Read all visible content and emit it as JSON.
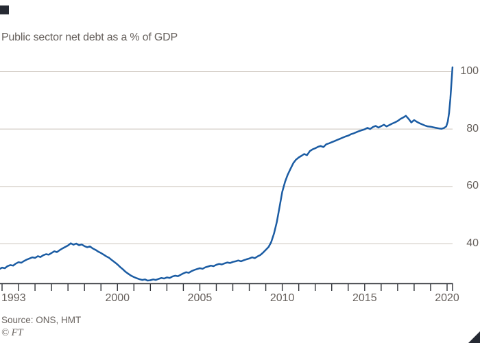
{
  "title": "Public sector net debt as a % of GDP",
  "source_line": "Source: ONS, HMT",
  "credit": "© FT",
  "colors": {
    "background": "#ffffff",
    "line": "#1b5ca3",
    "gridline": "#cbc3ba",
    "axis": "#303338",
    "text": "#66605c",
    "brand_mark": "#262a33"
  },
  "chart_data": {
    "type": "line",
    "title": "Public sector net debt as a % of GDP",
    "xlabel": "",
    "ylabel": "",
    "grid": "horizontal",
    "legend": "none",
    "y_axis": {
      "side": "right",
      "ticks": [
        40,
        60,
        80,
        100
      ],
      "ylim_bottom_at_axis": 26.1,
      "ylim_top": 103
    },
    "x_axis": {
      "tick_interval_years": 1,
      "first_tick_year": 1993,
      "end_of_axis_year": 2020.33,
      "labeled_years": [
        "1993",
        "2000",
        "2005",
        "2010",
        "2015",
        "2020"
      ]
    },
    "series": [
      {
        "name": "Public sector net debt as a % of GDP",
        "points": [
          [
            1992.88,
            31.2
          ],
          [
            1993.0,
            31.6
          ],
          [
            1993.17,
            31.4
          ],
          [
            1993.33,
            32.1
          ],
          [
            1993.5,
            32.5
          ],
          [
            1993.67,
            32.3
          ],
          [
            1993.83,
            33.0
          ],
          [
            1994.0,
            33.5
          ],
          [
            1994.17,
            33.3
          ],
          [
            1994.33,
            33.9
          ],
          [
            1994.5,
            34.4
          ],
          [
            1994.67,
            34.8
          ],
          [
            1994.83,
            35.2
          ],
          [
            1995.0,
            35.0
          ],
          [
            1995.17,
            35.6
          ],
          [
            1995.33,
            35.3
          ],
          [
            1995.5,
            35.9
          ],
          [
            1995.67,
            36.3
          ],
          [
            1995.83,
            36.1
          ],
          [
            1996.0,
            36.7
          ],
          [
            1996.17,
            37.3
          ],
          [
            1996.33,
            37.0
          ],
          [
            1996.5,
            37.7
          ],
          [
            1996.67,
            38.3
          ],
          [
            1996.83,
            38.8
          ],
          [
            1997.0,
            39.3
          ],
          [
            1997.17,
            40.1
          ],
          [
            1997.33,
            39.6
          ],
          [
            1997.5,
            40.0
          ],
          [
            1997.67,
            39.4
          ],
          [
            1997.83,
            39.7
          ],
          [
            1998.0,
            39.1
          ],
          [
            1998.17,
            38.7
          ],
          [
            1998.33,
            39.0
          ],
          [
            1998.5,
            38.3
          ],
          [
            1998.67,
            37.8
          ],
          [
            1998.83,
            37.2
          ],
          [
            1999.0,
            36.7
          ],
          [
            1999.17,
            36.1
          ],
          [
            1999.33,
            35.5
          ],
          [
            1999.5,
            35.0
          ],
          [
            1999.67,
            34.2
          ],
          [
            1999.83,
            33.5
          ],
          [
            2000.0,
            32.7
          ],
          [
            2000.17,
            31.8
          ],
          [
            2000.33,
            31.0
          ],
          [
            2000.5,
            30.1
          ],
          [
            2000.67,
            29.4
          ],
          [
            2000.83,
            28.8
          ],
          [
            2001.0,
            28.3
          ],
          [
            2001.17,
            27.9
          ],
          [
            2001.33,
            27.6
          ],
          [
            2001.5,
            27.3
          ],
          [
            2001.67,
            27.5
          ],
          [
            2001.83,
            27.1
          ],
          [
            2002.0,
            27.2
          ],
          [
            2002.17,
            27.5
          ],
          [
            2002.33,
            27.3
          ],
          [
            2002.5,
            27.7
          ],
          [
            2002.67,
            28.0
          ],
          [
            2002.83,
            27.8
          ],
          [
            2003.0,
            28.2
          ],
          [
            2003.17,
            28.0
          ],
          [
            2003.33,
            28.5
          ],
          [
            2003.5,
            28.8
          ],
          [
            2003.67,
            28.6
          ],
          [
            2003.83,
            29.1
          ],
          [
            2004.0,
            29.6
          ],
          [
            2004.17,
            30.0
          ],
          [
            2004.33,
            29.8
          ],
          [
            2004.5,
            30.4
          ],
          [
            2004.67,
            30.8
          ],
          [
            2004.83,
            31.1
          ],
          [
            2005.0,
            31.4
          ],
          [
            2005.17,
            31.2
          ],
          [
            2005.33,
            31.7
          ],
          [
            2005.5,
            32.0
          ],
          [
            2005.67,
            32.3
          ],
          [
            2005.83,
            32.1
          ],
          [
            2006.0,
            32.6
          ],
          [
            2006.17,
            32.9
          ],
          [
            2006.33,
            32.7
          ],
          [
            2006.5,
            33.1
          ],
          [
            2006.67,
            33.4
          ],
          [
            2006.83,
            33.2
          ],
          [
            2007.0,
            33.6
          ],
          [
            2007.17,
            33.8
          ],
          [
            2007.33,
            34.1
          ],
          [
            2007.5,
            33.8
          ],
          [
            2007.67,
            34.2
          ],
          [
            2007.83,
            34.5
          ],
          [
            2008.0,
            34.8
          ],
          [
            2008.17,
            35.2
          ],
          [
            2008.33,
            34.9
          ],
          [
            2008.5,
            35.5
          ],
          [
            2008.67,
            36.0
          ],
          [
            2008.83,
            36.8
          ],
          [
            2009.0,
            37.8
          ],
          [
            2009.17,
            38.8
          ],
          [
            2009.33,
            40.5
          ],
          [
            2009.5,
            43.5
          ],
          [
            2009.67,
            47.5
          ],
          [
            2009.83,
            52.5
          ],
          [
            2010.0,
            58.0
          ],
          [
            2010.17,
            61.5
          ],
          [
            2010.33,
            64.0
          ],
          [
            2010.5,
            66.0
          ],
          [
            2010.67,
            68.0
          ],
          [
            2010.83,
            69.2
          ],
          [
            2011.0,
            70.0
          ],
          [
            2011.17,
            70.6
          ],
          [
            2011.33,
            71.2
          ],
          [
            2011.5,
            70.8
          ],
          [
            2011.67,
            72.2
          ],
          [
            2011.83,
            72.8
          ],
          [
            2012.0,
            73.2
          ],
          [
            2012.17,
            73.7
          ],
          [
            2012.33,
            74.0
          ],
          [
            2012.5,
            73.6
          ],
          [
            2012.67,
            74.6
          ],
          [
            2012.83,
            74.9
          ],
          [
            2013.0,
            75.3
          ],
          [
            2013.17,
            75.7
          ],
          [
            2013.33,
            76.1
          ],
          [
            2013.5,
            76.5
          ],
          [
            2013.67,
            76.9
          ],
          [
            2013.83,
            77.3
          ],
          [
            2014.0,
            77.6
          ],
          [
            2014.17,
            78.1
          ],
          [
            2014.33,
            78.4
          ],
          [
            2014.5,
            78.8
          ],
          [
            2014.67,
            79.2
          ],
          [
            2014.83,
            79.5
          ],
          [
            2015.0,
            79.8
          ],
          [
            2015.17,
            80.3
          ],
          [
            2015.33,
            79.9
          ],
          [
            2015.5,
            80.6
          ],
          [
            2015.67,
            81.0
          ],
          [
            2015.83,
            80.4
          ],
          [
            2016.0,
            80.9
          ],
          [
            2016.17,
            81.4
          ],
          [
            2016.33,
            80.8
          ],
          [
            2016.5,
            81.3
          ],
          [
            2016.67,
            81.8
          ],
          [
            2016.83,
            82.2
          ],
          [
            2017.0,
            82.7
          ],
          [
            2017.17,
            83.4
          ],
          [
            2017.33,
            83.9
          ],
          [
            2017.5,
            84.5
          ],
          [
            2017.67,
            83.4
          ],
          [
            2017.83,
            82.2
          ],
          [
            2018.0,
            83.0
          ],
          [
            2018.17,
            82.4
          ],
          [
            2018.33,
            81.9
          ],
          [
            2018.5,
            81.5
          ],
          [
            2018.67,
            81.1
          ],
          [
            2018.83,
            80.8
          ],
          [
            2019.0,
            80.7
          ],
          [
            2019.17,
            80.5
          ],
          [
            2019.33,
            80.3
          ],
          [
            2019.5,
            80.1
          ],
          [
            2019.67,
            80.0
          ],
          [
            2019.83,
            80.3
          ],
          [
            2019.95,
            80.8
          ],
          [
            2020.04,
            82.5
          ],
          [
            2020.12,
            85.5
          ],
          [
            2020.2,
            90.5
          ],
          [
            2020.27,
            96.5
          ],
          [
            2020.33,
            101.4
          ]
        ]
      }
    ]
  },
  "y_labels": [
    "100",
    "80",
    "60",
    "40"
  ],
  "x_labels": [
    "1993",
    "2000",
    "2005",
    "2010",
    "2015",
    "2020"
  ]
}
